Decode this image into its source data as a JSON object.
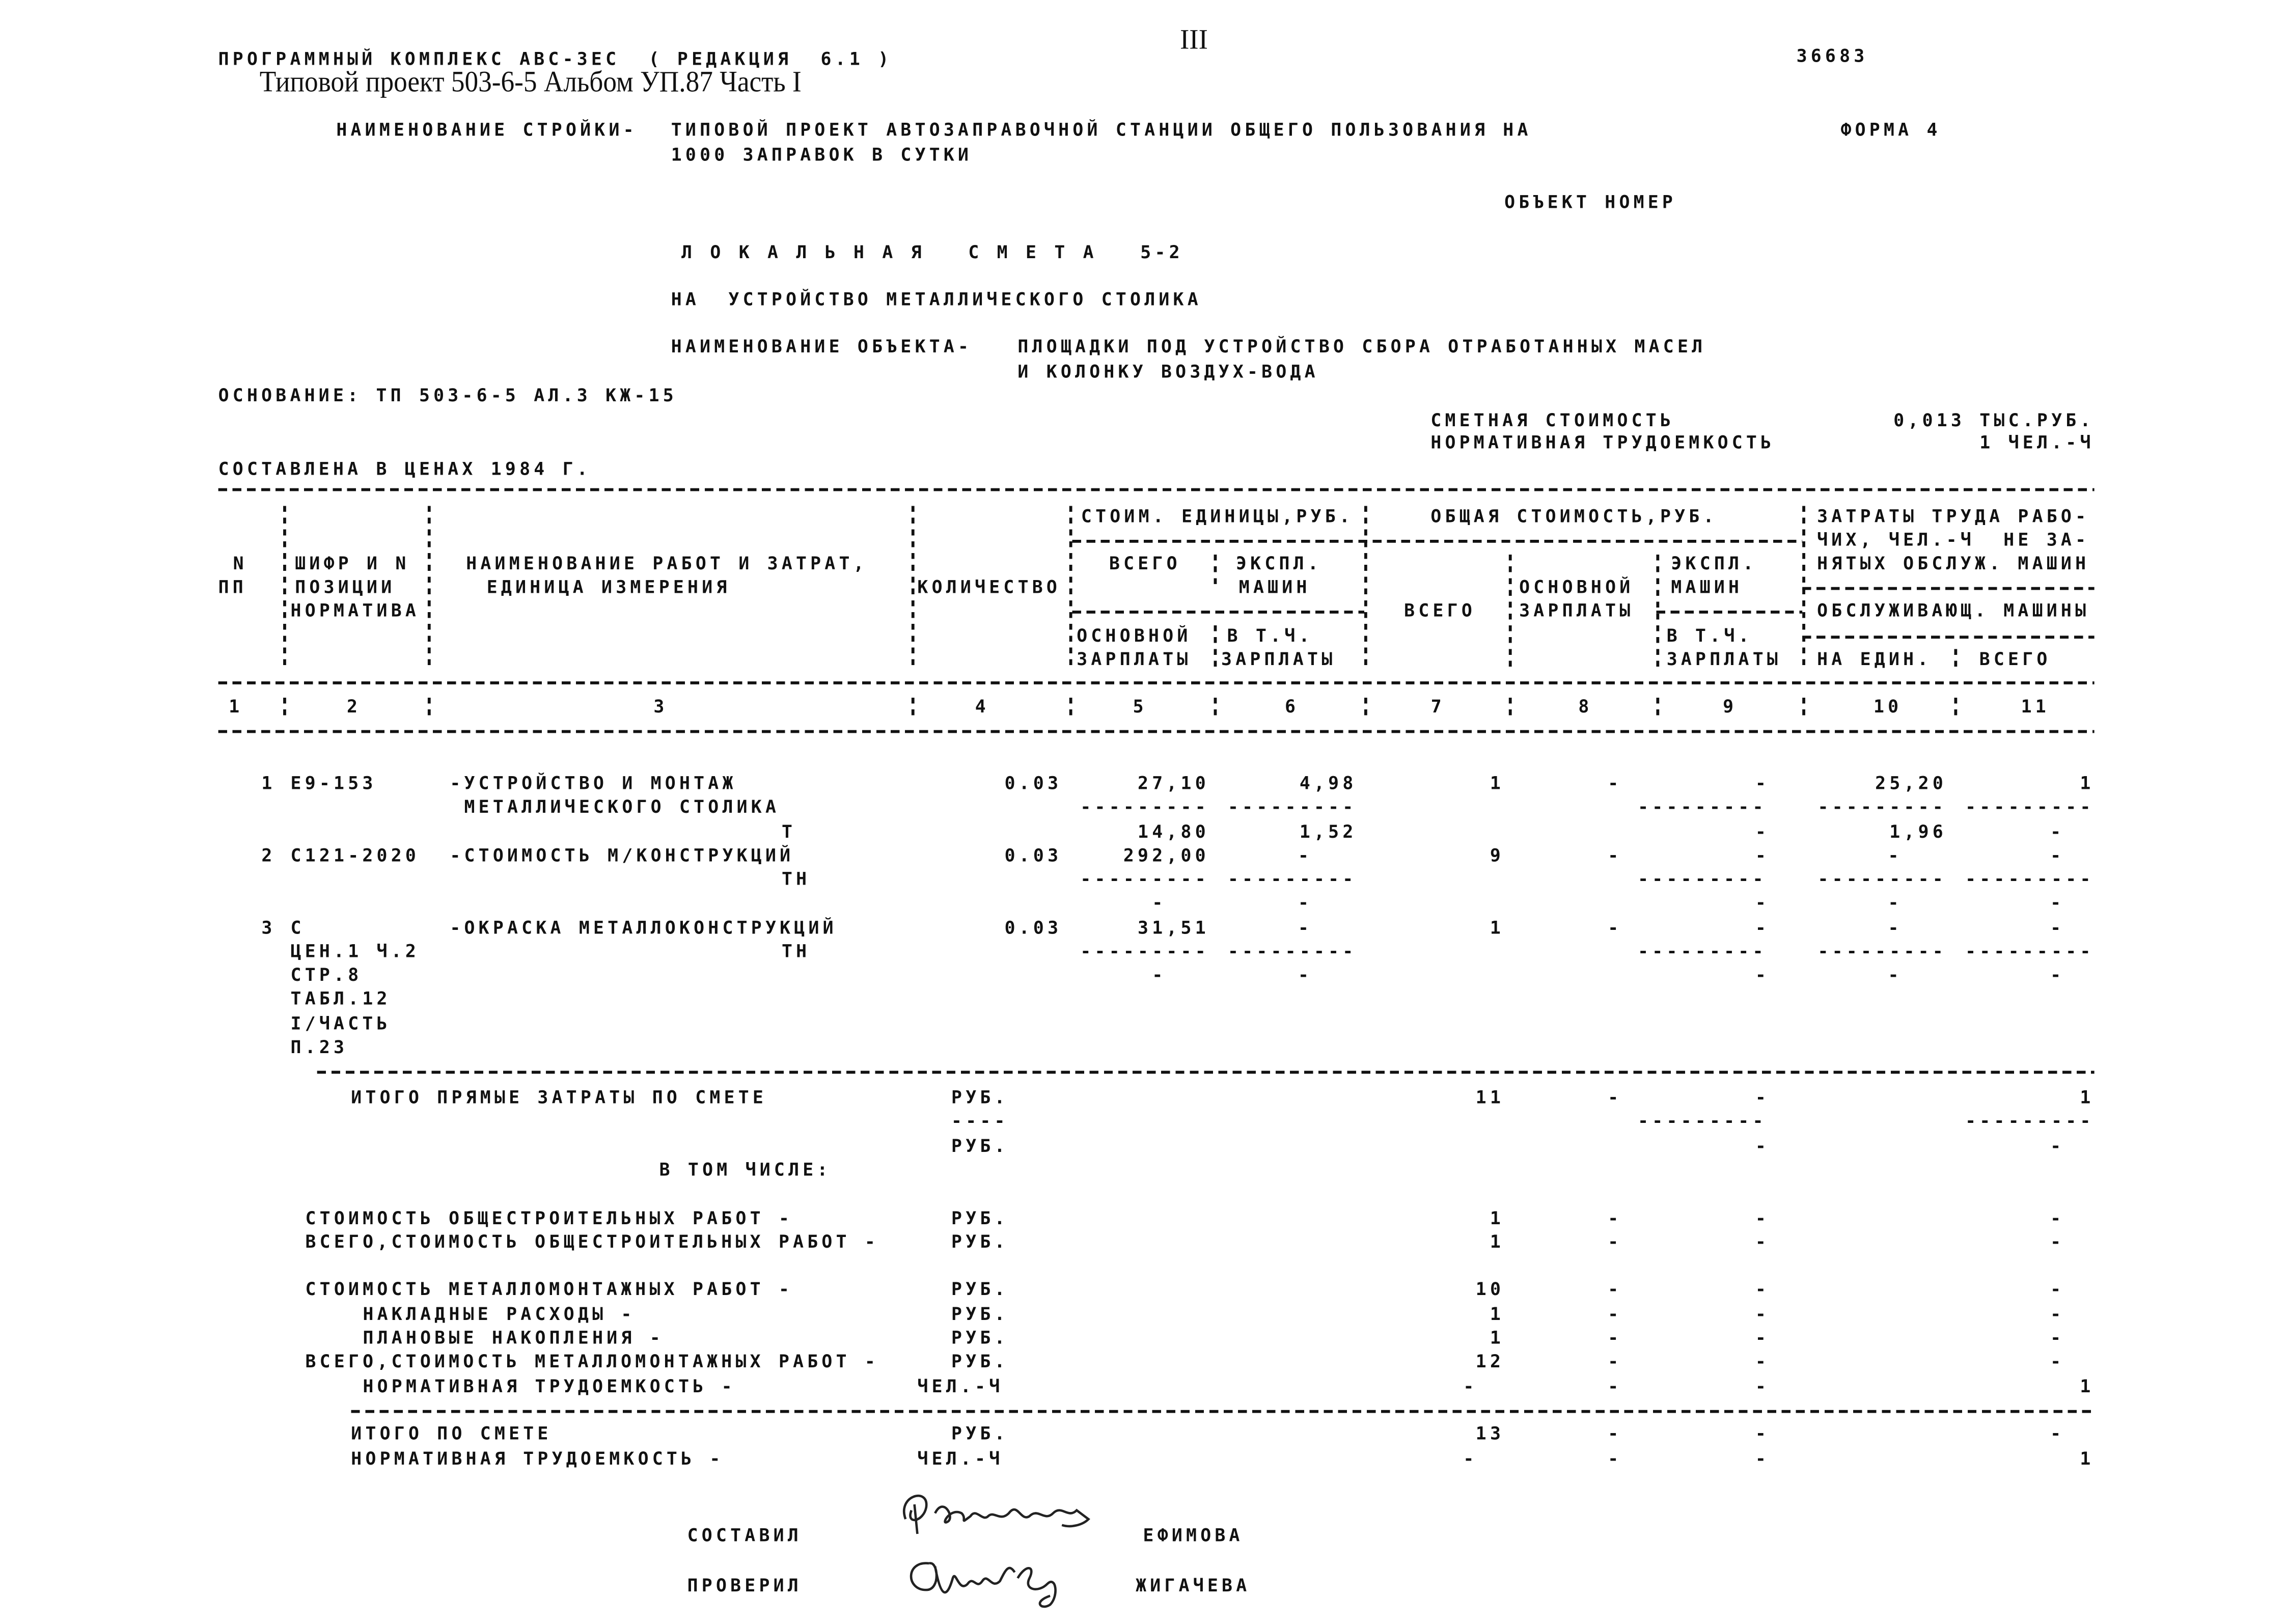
{
  "header": {
    "program": "ПРОГРАММНЫЙ КОМПЛЕКС АВС-3ЕС  ( РЕДАКЦИЯ  6.1 )",
    "page_number": "III",
    "doc_number": "36683",
    "project_stamp": "Типовой проект 503-6-5 Альбом УП.87 Часть I",
    "construction_label": "НАИМЕНОВАНИЕ СТРОЙКИ-",
    "construction_line1": "ТИПОВОЙ ПРОЕКТ АВТОЗАПРАВОЧНОЙ СТАНЦИИ ОБЩЕГО ПОЛЬЗОВАНИЯ НА",
    "construction_line2": "1000 ЗАПРАВОК В СУТКИ",
    "form": "ФОРМА 4",
    "object_number": "ОБЪЕКТ НОМЕР",
    "title": "Л О К А Л Ь Н А Я   С М Е Т А   5-2",
    "subject": "НА  УСТРОЙСТВО МЕТАЛЛИЧЕСКОГО СТОЛИКА",
    "object_label": "НАИМЕНОВАНИЕ ОБЪЕКТА-",
    "object_line1": "ПЛОЩАДКИ ПОД УСТРОЙСТВО СБОРА ОТРАБОТАННЫХ МАСЕЛ",
    "object_line2": "И КОЛОНКУ ВОЗДУХ-ВОДА",
    "basis": "ОСНОВАНИЕ: ТП 503-6-5 АЛ.3 КЖ-15",
    "cost_label": "СМЕТНАЯ СТОИМОСТЬ",
    "cost_value": "0,013 ТЫС.РУБ.",
    "labor_label": "НОРМАТИВНАЯ ТРУДОЕМКОСТЬ",
    "labor_value": "1 ЧЕЛ.-Ч",
    "prices": "СОСТАВЛЕНА В ЦЕНАХ 1984 Г."
  },
  "table_header": {
    "unit_cost_group": "СТОИМ. ЕДИНИЦЫ,РУБ.",
    "total_cost_group": "ОБЩАЯ СТОИМОСТЬ,РУБ.",
    "labor_group_1": "ЗАТРАТЫ ТРУДА РАБО-",
    "labor_group_2": "ЧИХ, ЧЕЛ.-Ч  НЕ ЗА-",
    "labor_group_3": "НЯТЫХ ОБСЛУЖ. МАШИН",
    "labor_group_4": "ОБСЛУЖИВАЮЩ. МАШИНЫ",
    "n_1": "N",
    "n_2": "ПП",
    "code_1": "ШИФР И N",
    "code_2": "ПОЗИЦИИ",
    "code_3": "НОРМАТИВА",
    "name_1": "НАИМЕНОВАНИЕ РАБОТ И ЗАТРАТ,",
    "name_2": "ЕДИНИЦА ИЗМЕРЕНИЯ",
    "qty": "КОЛИЧЕСТВО",
    "c5_1": "ВСЕГО",
    "c5_2": "ОСНОВНОЙ",
    "c5_3": "ЗАРПЛАТЫ",
    "c6_1": "ЭКСПЛ.",
    "c6_2": "МАШИН",
    "c6_3": "В Т.Ч.",
    "c6_4": "ЗАРПЛАТЫ",
    "c7": "ВСЕГО",
    "c8_1": "ОСНОВНОЙ",
    "c8_2": "ЗАРПЛАТЫ",
    "c9_1": "ЭКСПЛ.",
    "c9_2": "МАШИН",
    "c9_3": "В Т.Ч.",
    "c9_4": "ЗАРПЛАТЫ",
    "c10": "НА ЕДИН.",
    "c11": "ВСЕГО",
    "numbers": [
      "1",
      "2",
      "3",
      "4",
      "5",
      "6",
      "7",
      "8",
      "9",
      "10",
      "11"
    ]
  },
  "rows": [
    {
      "n": "1",
      "code": "Е9-153",
      "name": "-УСТРОЙСТВО И МОНТАЖ",
      "qty": "0.03",
      "c5": "27,10",
      "c6": "4,98",
      "c7": "1",
      "c8": "-",
      "c9": "-",
      "c10": "25,20",
      "c11": "1"
    },
    {
      "name": " МЕТАЛЛИЧЕСКОГО СТОЛИКА",
      "c5": "---------",
      "c6": "---------",
      "c9": "---------",
      "c10": "---------",
      "c11": "---------"
    },
    {
      "unit": "Т",
      "c5": "14,80",
      "c6": "1,52",
      "c9": "-",
      "c10": "1,96",
      "c11": "-"
    },
    {
      "n": "2",
      "code": "С121-2020",
      "name": "-СТОИМОСТЬ М/КОНСТРУКЦИЙ",
      "qty": "0.03",
      "c5": "292,00",
      "c6": "-",
      "c7": "9",
      "c8": "-",
      "c9": "-",
      "c10": "-",
      "c11": "-"
    },
    {
      "unit": "ТН",
      "c5": "---------",
      "c6": "---------",
      "c9": "---------",
      "c10": "---------",
      "c11": "---------"
    },
    {
      "c5": "-",
      "c6": "-",
      "c9": "-",
      "c10": "-",
      "c11": "-"
    },
    {
      "n": "3",
      "code": "С",
      "name": "-ОКРАСКА МЕТАЛЛОКОНСТРУКЦИЙ",
      "qty": "0.03",
      "c5": "31,51",
      "c6": "-",
      "c7": "1",
      "c8": "-",
      "c9": "-",
      "c10": "-",
      "c11": "-"
    },
    {
      "code": "ЦЕН.1 Ч.2",
      "unit": "ТН",
      "c5": "---------",
      "c6": "---------",
      "c9": "---------",
      "c10": "---------",
      "c11": "---------"
    },
    {
      "code": "СТР.8",
      "c5": "-",
      "c6": "-",
      "c9": "-",
      "c10": "-",
      "c11": "-"
    },
    {
      "code": "ТАБЛ.12"
    },
    {
      "code": "I/ЧАСТЬ"
    },
    {
      "code": "П.23"
    }
  ],
  "totals": [
    {
      "label": "ИТОГО ПРЯМЫЕ ЗАТРАТЫ ПО СМЕТЕ",
      "unit": "РУБ.",
      "c7": "11",
      "c8": "-",
      "c9": "-",
      "c11": "1"
    },
    {
      "unit": "----",
      "c9": "---------",
      "c11": "---------"
    },
    {
      "unit": "РУБ.",
      "c9": "-",
      "c11": "-"
    },
    {
      "label": "В ТОМ ЧИСЛЕ:"
    },
    {},
    {
      "label": "СТОИМОСТЬ ОБЩЕСТРОИТЕЛЬНЫХ РАБОТ -",
      "unit": "РУБ.",
      "c7": "1",
      "c8": "-",
      "c9": "-",
      "c11": "-"
    },
    {
      "label": "ВСЕГО,СТОИМОСТЬ ОБЩЕСТРОИТЕЛЬНЫХ РАБОТ -",
      "unit": "РУБ.",
      "c7": "1",
      "c8": "-",
      "c9": "-",
      "c11": "-"
    },
    {},
    {
      "label": "СТОИМОСТЬ МЕТАЛЛОМОНТАЖНЫХ РАБОТ -",
      "unit": "РУБ.",
      "c7": "10",
      "c8": "-",
      "c9": "-",
      "c11": "-"
    },
    {
      "label": "НАКЛАДНЫЕ РАСХОДЫ -",
      "unit": "РУБ.",
      "c7": "1",
      "c8": "-",
      "c9": "-",
      "c11": "-"
    },
    {
      "label": "ПЛАНОВЫЕ НАКОПЛЕНИЯ -",
      "unit": "РУБ.",
      "c7": "1",
      "c8": "-",
      "c9": "-",
      "c11": "-"
    },
    {
      "label": "ВСЕГО,СТОИМОСТЬ МЕТАЛЛОМОНТАЖНЫХ РАБОТ -",
      "unit": "РУБ.",
      "c7": "12",
      "c8": "-",
      "c9": "-",
      "c11": "-"
    },
    {
      "label": "НОРМАТИВНАЯ ТРУДОЕМКОСТЬ -",
      "unit": "ЧЕЛ.-Ч",
      "c7": "-",
      "c8": "-",
      "c9": "-",
      "c11": "1"
    },
    {},
    {
      "label": "ИТОГО ПО СМЕТЕ",
      "unit": "РУБ.",
      "c7": "13",
      "c8": "-",
      "c9": "-",
      "c11": "-"
    },
    {
      "label": "НОРМАТИВНАЯ ТРУДОЕМКОСТЬ -",
      "unit": "ЧЕЛ.-Ч",
      "c7": "-",
      "c8": "-",
      "c9": "-",
      "c11": "1"
    }
  ],
  "signatures": {
    "compiled_label": "СОСТАВИЛ",
    "compiled_name": "ЕФИМОВА",
    "checked_label": "ПРОВЕРИЛ",
    "checked_name": "ЖИГАЧЕВА"
  }
}
